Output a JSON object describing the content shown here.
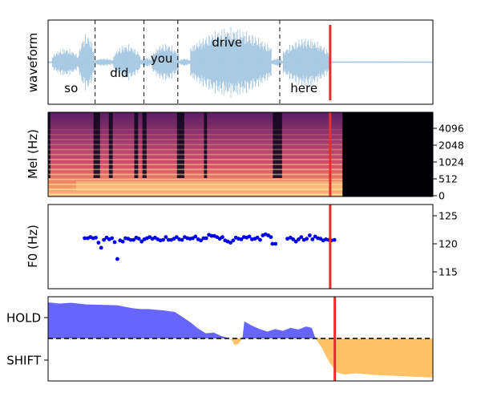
{
  "chart_data": [
    {
      "type": "area",
      "panel": "waveform",
      "ylabel": "waveform",
      "xlim": [
        0,
        100
      ],
      "words": [
        {
          "text": "so",
          "x": 6
        },
        {
          "text": "did",
          "x": 18.5
        },
        {
          "text": "you",
          "x": 29.5
        },
        {
          "text": "drive",
          "x": 46.5
        },
        {
          "text": "here",
          "x": 66.5
        }
      ],
      "word_boundaries": [
        12.2,
        24.9,
        33.7,
        60.2
      ],
      "cursor_x": 73.3,
      "colors": {
        "wave": "#a6c8e2",
        "boundary": "#333333",
        "cursor": "#e8302a"
      }
    },
    {
      "type": "heatmap",
      "panel": "mel",
      "ylabel": "Mel (Hz)",
      "yticks": [
        "0",
        "512",
        "1024",
        "2048",
        "4096"
      ],
      "xlim": [
        0,
        100
      ],
      "speech_end_x": 76.5,
      "cursor_x": 73.3
    },
    {
      "type": "scatter",
      "panel": "f0",
      "ylabel": "F0 (Hz)",
      "xlim": [
        0,
        100
      ],
      "ylim": [
        112,
        127
      ],
      "yticks": [
        115,
        120,
        125
      ],
      "points": [
        [
          9.5,
          121
        ],
        [
          10.3,
          121
        ],
        [
          11.0,
          121.2
        ],
        [
          11.7,
          121
        ],
        [
          12.4,
          121.1
        ],
        [
          13.1,
          120.2
        ],
        [
          13.8,
          119.3
        ],
        [
          14.5,
          120.7
        ],
        [
          15.2,
          121.1
        ],
        [
          15.9,
          120.8
        ],
        [
          16.6,
          121
        ],
        [
          17.3,
          120.3
        ],
        [
          18.0,
          117.3
        ],
        [
          18.7,
          120.6
        ],
        [
          19.4,
          120.4
        ],
        [
          20.1,
          121
        ],
        [
          20.8,
          120.9
        ],
        [
          21.5,
          120.7
        ],
        [
          22.2,
          120.7
        ],
        [
          22.9,
          121.1
        ],
        [
          23.6,
          120.9
        ],
        [
          24.3,
          120.4
        ],
        [
          25.0,
          120.8
        ],
        [
          25.7,
          121
        ],
        [
          26.4,
          121.2
        ],
        [
          27.1,
          120.9
        ],
        [
          27.8,
          121.1
        ],
        [
          28.5,
          120.8
        ],
        [
          29.2,
          120.6
        ],
        [
          29.9,
          120.7
        ],
        [
          30.6,
          121.2
        ],
        [
          31.3,
          120.7
        ],
        [
          32.0,
          120.7
        ],
        [
          32.7,
          120.9
        ],
        [
          33.4,
          121.2
        ],
        [
          34.1,
          120.8
        ],
        [
          34.8,
          120.7
        ],
        [
          35.5,
          121.2
        ],
        [
          36.2,
          121
        ],
        [
          36.9,
          120.9
        ],
        [
          37.6,
          121
        ],
        [
          38.3,
          121.3
        ],
        [
          39.0,
          120.8
        ],
        [
          39.7,
          120.6
        ],
        [
          40.4,
          121
        ],
        [
          41.1,
          121
        ],
        [
          41.8,
          121.6
        ],
        [
          42.5,
          121.4
        ],
        [
          43.2,
          121.4
        ],
        [
          43.9,
          121.2
        ],
        [
          44.6,
          120.9
        ],
        [
          45.3,
          121.2
        ],
        [
          46.0,
          120.6
        ],
        [
          46.7,
          120.4
        ],
        [
          47.4,
          120.2
        ],
        [
          48.1,
          120.6
        ],
        [
          48.8,
          121.1
        ],
        [
          49.5,
          120.9
        ],
        [
          50.2,
          120.8
        ],
        [
          50.9,
          121.2
        ],
        [
          51.6,
          121.1
        ],
        [
          52.3,
          121.3
        ],
        [
          53.0,
          120.8
        ],
        [
          53.7,
          120.9
        ],
        [
          54.4,
          121.1
        ],
        [
          55.1,
          120.7
        ],
        [
          55.8,
          121.5
        ],
        [
          56.5,
          121.7
        ],
        [
          57.2,
          121.5
        ],
        [
          57.9,
          121.2
        ],
        [
          58.3,
          120
        ],
        [
          59.1,
          120
        ],
        [
          62.2,
          120.9
        ],
        [
          63.0,
          121.1
        ],
        [
          63.7,
          120.8
        ],
        [
          64.4,
          120.4
        ],
        [
          65.1,
          120.8
        ],
        [
          65.8,
          121.2
        ],
        [
          66.5,
          120.7
        ],
        [
          67.2,
          120.9
        ],
        [
          68.0,
          121.5
        ],
        [
          68.7,
          120.8
        ],
        [
          69.4,
          121.3
        ],
        [
          70.1,
          121
        ],
        [
          70.8,
          120.9
        ],
        [
          71.5,
          120.6
        ],
        [
          72.2,
          120.8
        ],
        [
          72.9,
          120.7
        ],
        [
          73.6,
          120.6
        ],
        [
          74.4,
          120.7
        ]
      ],
      "cursor_x": 73.3,
      "colors": {
        "point": "#0000ee",
        "cursor": "#e8302a"
      }
    },
    {
      "type": "area",
      "panel": "turn",
      "yticks": [
        "HOLD",
        "SHIFT"
      ],
      "xlim": [
        0,
        100
      ],
      "ylim": [
        -1,
        1
      ],
      "baseline": 0,
      "hold": [
        [
          0,
          0.85
        ],
        [
          3,
          0.82
        ],
        [
          6,
          0.84
        ],
        [
          10,
          0.8
        ],
        [
          14,
          0.79
        ],
        [
          18,
          0.78
        ],
        [
          22,
          0.71
        ],
        [
          24,
          0.69
        ],
        [
          26,
          0.69
        ],
        [
          30,
          0.66
        ],
        [
          33,
          0.62
        ],
        [
          35,
          0.5
        ],
        [
          37,
          0.38
        ],
        [
          39,
          0.23
        ],
        [
          41,
          0.12
        ],
        [
          43,
          0.14
        ],
        [
          45,
          0.06
        ],
        [
          46.5,
          0.02
        ],
        [
          47,
          0
        ]
      ],
      "hold2": [
        [
          50.5,
          0
        ],
        [
          51,
          0.4
        ],
        [
          53,
          0.3
        ],
        [
          55,
          0.22
        ],
        [
          57,
          0.16
        ],
        [
          59,
          0.22
        ],
        [
          61,
          0.18
        ],
        [
          63,
          0.25
        ],
        [
          65,
          0.21
        ],
        [
          67,
          0.28
        ],
        [
          68.5,
          0.25
        ],
        [
          69.5,
          0
        ]
      ],
      "shift": [
        [
          47.5,
          0
        ],
        [
          48.5,
          -0.16
        ],
        [
          49.5,
          -0.12
        ],
        [
          50.5,
          0
        ],
        [
          69.5,
          0
        ],
        [
          71,
          -0.2
        ],
        [
          73,
          -0.55
        ],
        [
          75,
          -0.8
        ],
        [
          77,
          -0.85
        ],
        [
          80,
          -0.82
        ],
        [
          85,
          -0.86
        ],
        [
          90,
          -0.88
        ],
        [
          95,
          -0.9
        ],
        [
          100,
          -0.92
        ]
      ],
      "cursor_x": 74.5,
      "colors": {
        "hold": "#6666ff",
        "shift": "#ffc266",
        "cursor": "#e8302a"
      }
    }
  ]
}
